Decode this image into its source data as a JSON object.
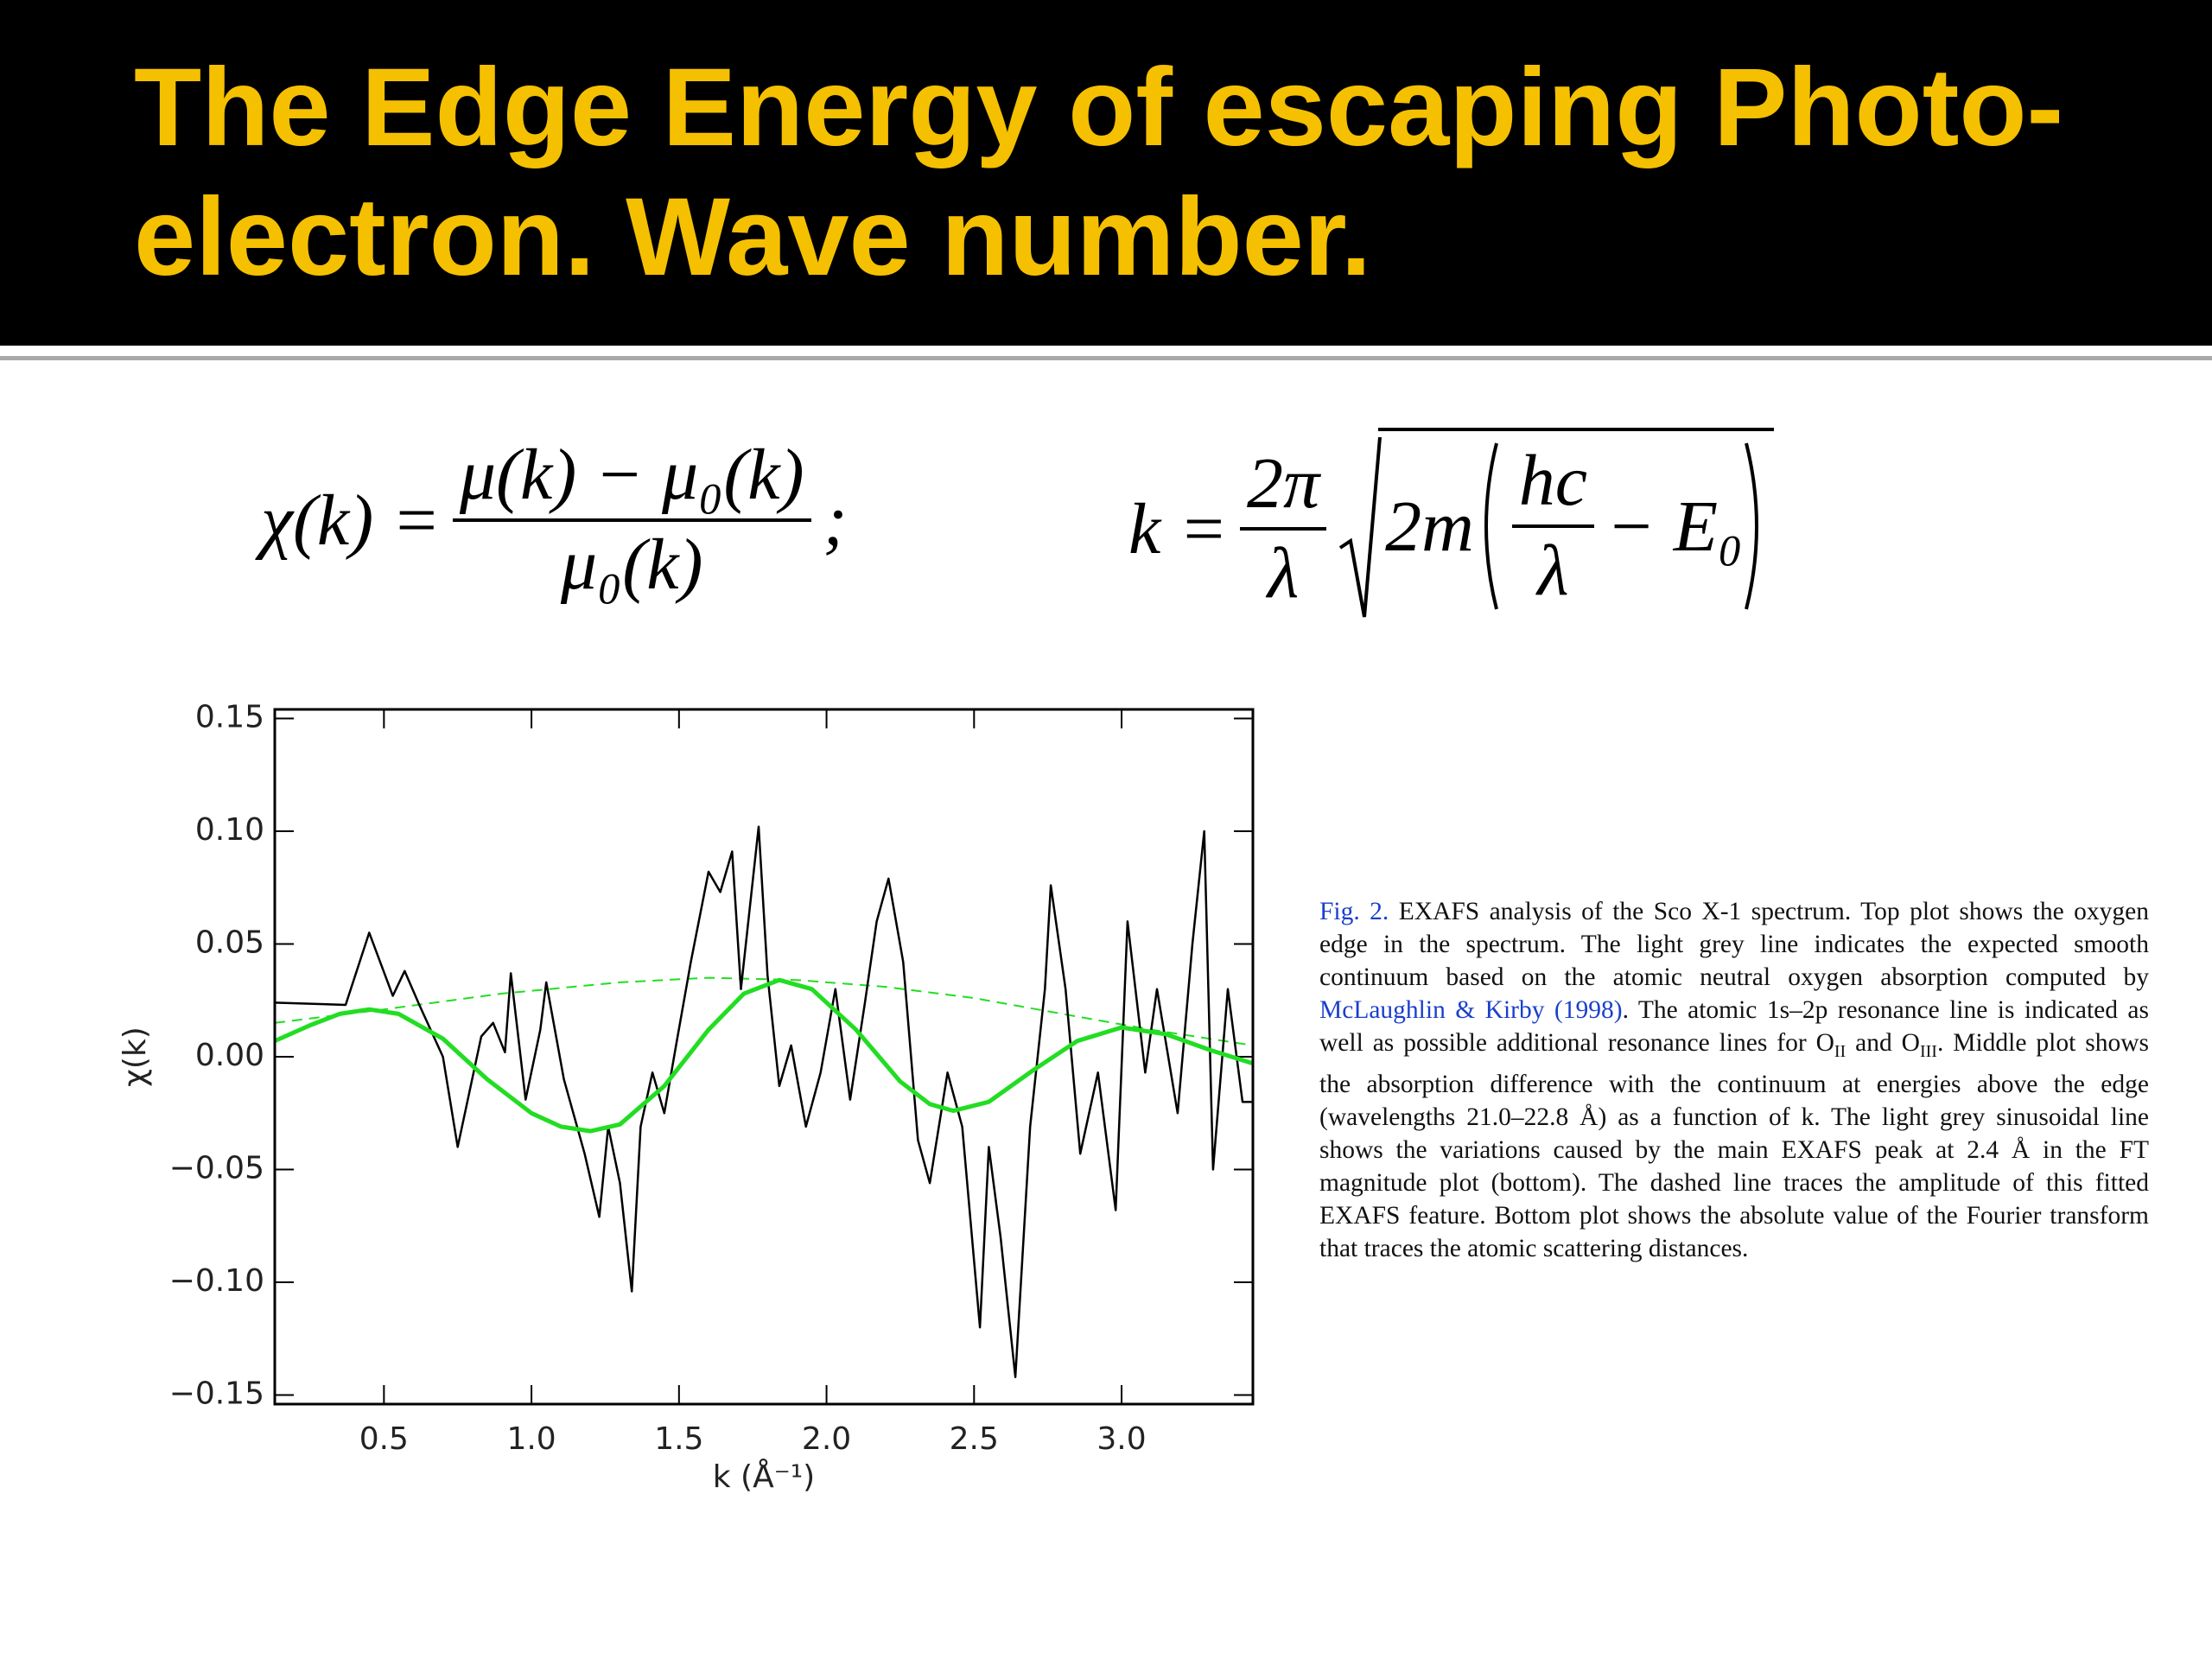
{
  "slide_title": {
    "lines": [
      "The Edge Energy of escaping Photo-",
      "electron. Wave number."
    ]
  },
  "formula_1": {
    "lhs": "χ(k) =",
    "numerator": "μ(k) − μ₀(k)",
    "denominator": "μ₀(k)",
    "end": ";"
  },
  "formula_2": {
    "lhs": "k =",
    "numerator": "2π",
    "denominator": "λ",
    "radicand": "2m",
    "inner_numerator": "hc",
    "inner_denominator": "λ",
    "inner_end": "− E₀"
  },
  "caption": {
    "label": "Fig. 2.",
    "text_1": " EXAFS analysis of the Sco X-1 spectrum. Top plot shows the oxygen edge in the spectrum. The light grey line indicates the expected smooth continuum based on the atomic neutral oxygen absorption computed by ",
    "citation": "McLaughlin & Kirby",
    "year": "(1998)",
    "text_2": ". The atomic 1s–2p resonance line is indicated as well as possible additional resonance lines for O",
    "sub_1": "II",
    "text_3": " and O",
    "sub_2": "III",
    "text_4": ". Middle plot shows the absorption difference with the continuum at energies above the edge (wavelengths 21.0–22.8 Å) as a function of k. The light grey sinusoidal line shows the variations caused by the main EXAFS peak at 2.4 Å in the FT magnitude plot (bottom). The dashed line traces the amplitude of this fitted EXAFS feature. Bottom plot shows the absolute value of the Fourier transform that traces the atomic scattering distances."
  },
  "chart_data": {
    "type": "line",
    "xlabel": "k (Å⁻¹)",
    "ylabel": "χ(k)",
    "xlim": [
      0.13,
      3.445
    ],
    "ylim": [
      -0.154,
      0.154
    ],
    "xticks": [
      0.5,
      {
        "value": 1.0,
        "label": "1.0"
      },
      1.5,
      {
        "value": 2.0,
        "label": "2.0"
      },
      2.5,
      {
        "value": 3.0,
        "label": "3.0"
      }
    ],
    "yticks": [
      {
        "value": 0.15,
        "label": "0.15"
      },
      {
        "value": 0.1,
        "label": "0.10"
      },
      {
        "value": 0.05,
        "label": "0.05"
      },
      {
        "value": 0,
        "label": "0.00"
      },
      {
        "value": -0.05,
        "label": "−0.05"
      },
      {
        "value": -0.1,
        "label": "−0.10"
      },
      {
        "value": -0.15,
        "label": "−0.15"
      }
    ],
    "series": [
      {
        "color": "#22dd22",
        "dashed": true,
        "width": 2,
        "x": [
          0.13,
          0.5,
          0.9,
          1.3,
          1.6,
          1.9,
          2.2,
          2.5,
          2.8,
          3.1,
          3.445
        ],
        "values": [
          0.015,
          0.021,
          0.028,
          0.033,
          0.035,
          0.034,
          0.031,
          0.026,
          0.019,
          0.012,
          0.005
        ]
      },
      {
        "color": "#000000",
        "dashed": false,
        "width": 2.5,
        "x": [
          0.13,
          0.37,
          0.45,
          0.53,
          0.57,
          0.62,
          0.7,
          0.75,
          0.83,
          0.87,
          0.91,
          0.93,
          0.98,
          1.03,
          1.05,
          1.11,
          1.18,
          1.23,
          1.26,
          1.3,
          1.34,
          1.37,
          1.41,
          1.45,
          1.49,
          1.54,
          1.6,
          1.64,
          1.68,
          1.71,
          1.77,
          1.8,
          1.84,
          1.88,
          1.93,
          1.98,
          2.03,
          2.08,
          2.13,
          2.17,
          2.21,
          2.26,
          2.31,
          2.35,
          2.41,
          2.46,
          2.52,
          2.55,
          2.59,
          2.64,
          2.69,
          2.74,
          2.76,
          2.81,
          2.86,
          2.92,
          2.98,
          3.02,
          3.08,
          3.12,
          3.19,
          3.24,
          3.28,
          3.31,
          3.36,
          3.41,
          3.445
        ],
        "values": [
          0.024,
          0.023,
          0.055,
          0.027,
          0.038,
          0.023,
          0.0,
          -0.04,
          0.009,
          0.015,
          0.002,
          0.037,
          -0.019,
          0.012,
          0.033,
          -0.01,
          -0.043,
          -0.071,
          -0.031,
          -0.056,
          -0.104,
          -0.031,
          -0.007,
          -0.025,
          0.005,
          0.042,
          0.082,
          0.073,
          0.091,
          0.03,
          0.102,
          0.036,
          -0.013,
          0.005,
          -0.031,
          -0.007,
          0.03,
          -0.019,
          0.024,
          0.06,
          0.079,
          0.042,
          -0.037,
          -0.056,
          -0.007,
          -0.031,
          -0.12,
          -0.04,
          -0.08,
          -0.142,
          -0.031,
          0.03,
          0.076,
          0.03,
          -0.043,
          -0.007,
          -0.068,
          0.06,
          -0.007,
          0.03,
          -0.025,
          0.05,
          0.1,
          -0.05,
          0.03,
          -0.02,
          -0.02
        ]
      },
      {
        "color": "#22dd22",
        "dashed": false,
        "width": 5,
        "x": [
          0.13,
          0.25,
          0.35,
          0.45,
          0.55,
          0.7,
          0.85,
          1.0,
          1.1,
          1.2,
          1.3,
          1.45,
          1.6,
          1.72,
          1.84,
          1.95,
          2.1,
          2.25,
          2.35,
          2.43,
          2.55,
          2.7,
          2.85,
          3.0,
          3.15,
          3.3,
          3.445
        ],
        "values": [
          0.007,
          0.014,
          0.019,
          0.021,
          0.019,
          0.008,
          -0.01,
          -0.025,
          -0.031,
          -0.033,
          -0.03,
          -0.013,
          0.012,
          0.028,
          0.034,
          0.03,
          0.012,
          -0.011,
          -0.021,
          -0.024,
          -0.02,
          -0.006,
          0.007,
          0.013,
          0.01,
          0.003,
          -0.003
        ]
      }
    ]
  }
}
